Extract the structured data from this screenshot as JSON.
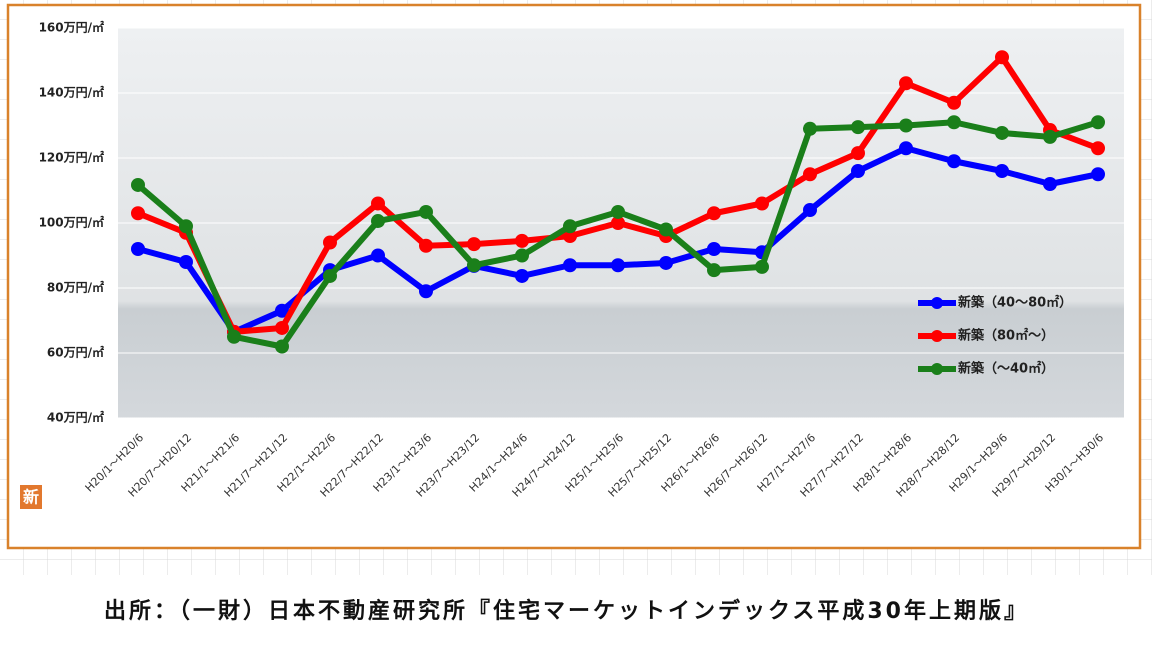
{
  "chart_data": {
    "type": "line",
    "categories": [
      "H20/1～H20/6",
      "H20/7～H20/12",
      "H21/1～H21/6",
      "H21/7～H21/12",
      "H22/1～H22/6",
      "H22/7～H22/12",
      "H23/1～H23/6",
      "H23/7～H23/12",
      "H24/1～H24/6",
      "H24/7～H24/12",
      "H25/1～H25/6",
      "H25/7～H25/12",
      "H26/1～H26/6",
      "H26/7～H26/12",
      "H27/1～H27/6",
      "H27/7～H27/12",
      "H28/1～H28/6",
      "H28/7～H28/12",
      "H29/1～H29/6",
      "H29/7～H29/12",
      "H30/1～H30/6"
    ],
    "series": [
      {
        "name": "新築（40～80㎡）",
        "color": "#0000ff",
        "values": [
          92,
          88,
          66.5,
          73,
          85.5,
          90,
          79,
          86.8,
          83.7,
          87,
          87,
          87.7,
          92,
          91,
          104,
          116,
          123,
          119,
          116,
          112,
          115
        ]
      },
      {
        "name": "新築（80㎡～）",
        "color": "#ff0000",
        "values": [
          103,
          97,
          66.5,
          67.7,
          94,
          106,
          93,
          93.5,
          94.5,
          96,
          100,
          96,
          103,
          106,
          115,
          121.5,
          143,
          137,
          151,
          128.6,
          123
        ]
      },
      {
        "name": "新築（～40㎡）",
        "color": "#1a7f1a",
        "values": [
          111.7,
          99,
          65,
          62,
          83.7,
          100.6,
          103.4,
          87,
          90,
          99,
          103.4,
          98,
          85.5,
          86.5,
          129,
          129.5,
          130,
          131,
          127.7,
          126.5,
          131
        ]
      }
    ],
    "ylim": [
      40,
      160
    ],
    "yticks": [
      {
        "value": 40,
        "label": "40万円/㎡"
      },
      {
        "value": 60,
        "label": "60万円/㎡"
      },
      {
        "value": 80,
        "label": "80万円/㎡"
      },
      {
        "value": 100,
        "label": "100万円/㎡"
      },
      {
        "value": 120,
        "label": "120万円/㎡"
      },
      {
        "value": 140,
        "label": "140万円/㎡"
      },
      {
        "value": 160,
        "label": "160万円/㎡"
      }
    ],
    "grid": true
  },
  "badge": "新",
  "source": "出所：（一財）日本不動産研究所『住宅マーケットインデックス平成30年上期版』"
}
